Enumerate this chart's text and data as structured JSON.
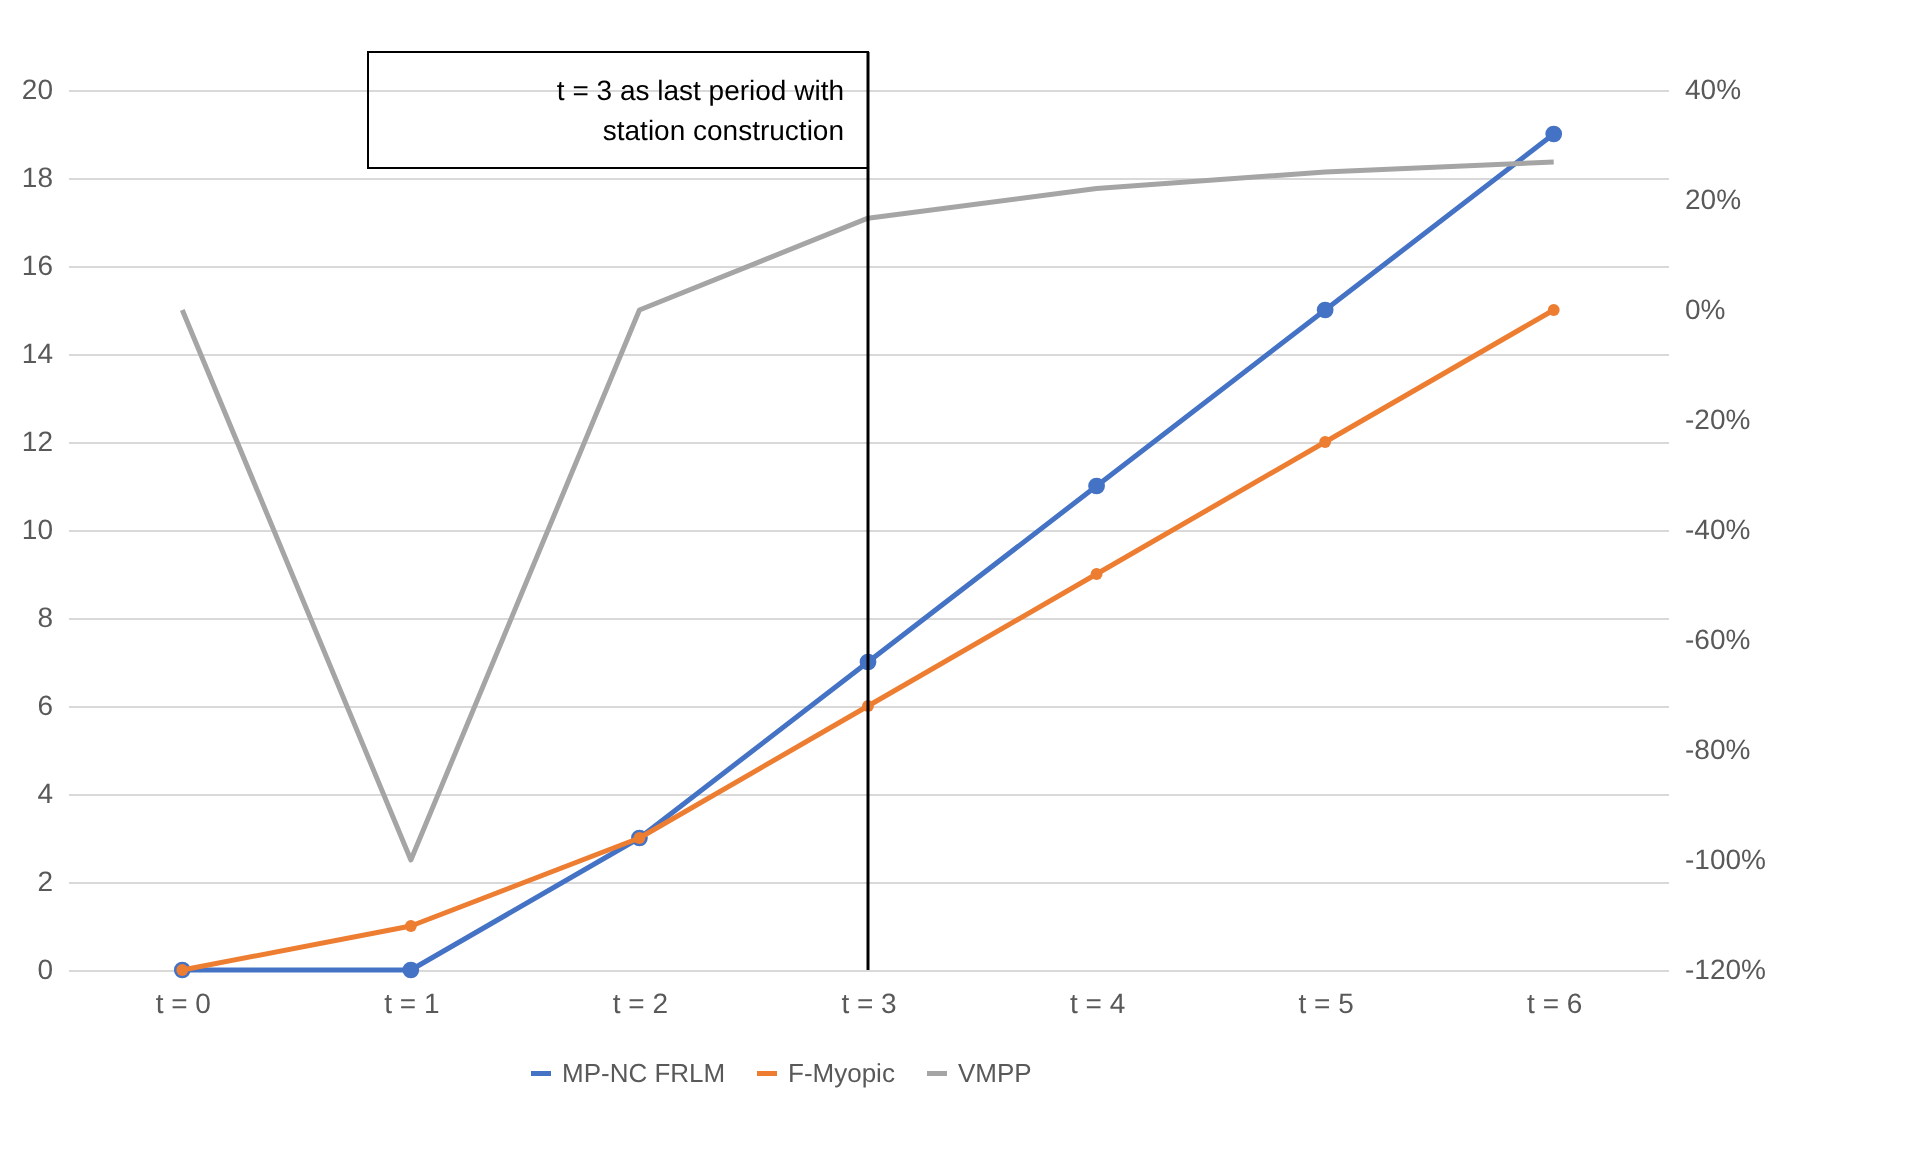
{
  "chart_data": {
    "type": "line",
    "categories": [
      "t = 0",
      "t = 1",
      "t = 2",
      "t = 3",
      "t = 4",
      "t = 5",
      "t = 6"
    ],
    "series": [
      {
        "name": "MP-NC FRLM",
        "color": "#4472c4",
        "marker": "circle",
        "values": [
          0,
          0,
          3,
          7,
          11,
          15,
          19
        ]
      },
      {
        "name": "F-Myopic",
        "color": "#ed7d31",
        "marker": "circle",
        "values": [
          0,
          1,
          3,
          6,
          9,
          12,
          15
        ]
      },
      {
        "name": "VMPP",
        "color": "#a5a5a5",
        "marker": "none",
        "axis": "y2",
        "values": [
          0,
          -100,
          0,
          16.7,
          22.1,
          25.1,
          26.9
        ]
      }
    ],
    "ylim": [
      0,
      20
    ],
    "yticks": [
      0,
      2,
      4,
      6,
      8,
      10,
      12,
      14,
      16,
      18,
      20
    ],
    "y2lim": [
      -120,
      40
    ],
    "y2ticks": [
      {
        "value": -120,
        "label": "-120%"
      },
      {
        "value": -100,
        "label": "-100%"
      },
      {
        "value": -80,
        "label": "-80%"
      },
      {
        "value": -60,
        "label": "-60%"
      },
      {
        "value": -40,
        "label": "-40%"
      },
      {
        "value": -20,
        "label": "-20%"
      },
      {
        "value": 0,
        "label": "0%"
      },
      {
        "value": 20,
        "label": "20%"
      },
      {
        "value": 40,
        "label": "40%"
      }
    ],
    "ref_lines": [
      {
        "axis": "x",
        "value": "t = 3",
        "label": "t = 3 as last period with station construction",
        "color": "#000000"
      }
    ],
    "grid": "y",
    "legend": "bottom",
    "line_style": "solid"
  }
}
